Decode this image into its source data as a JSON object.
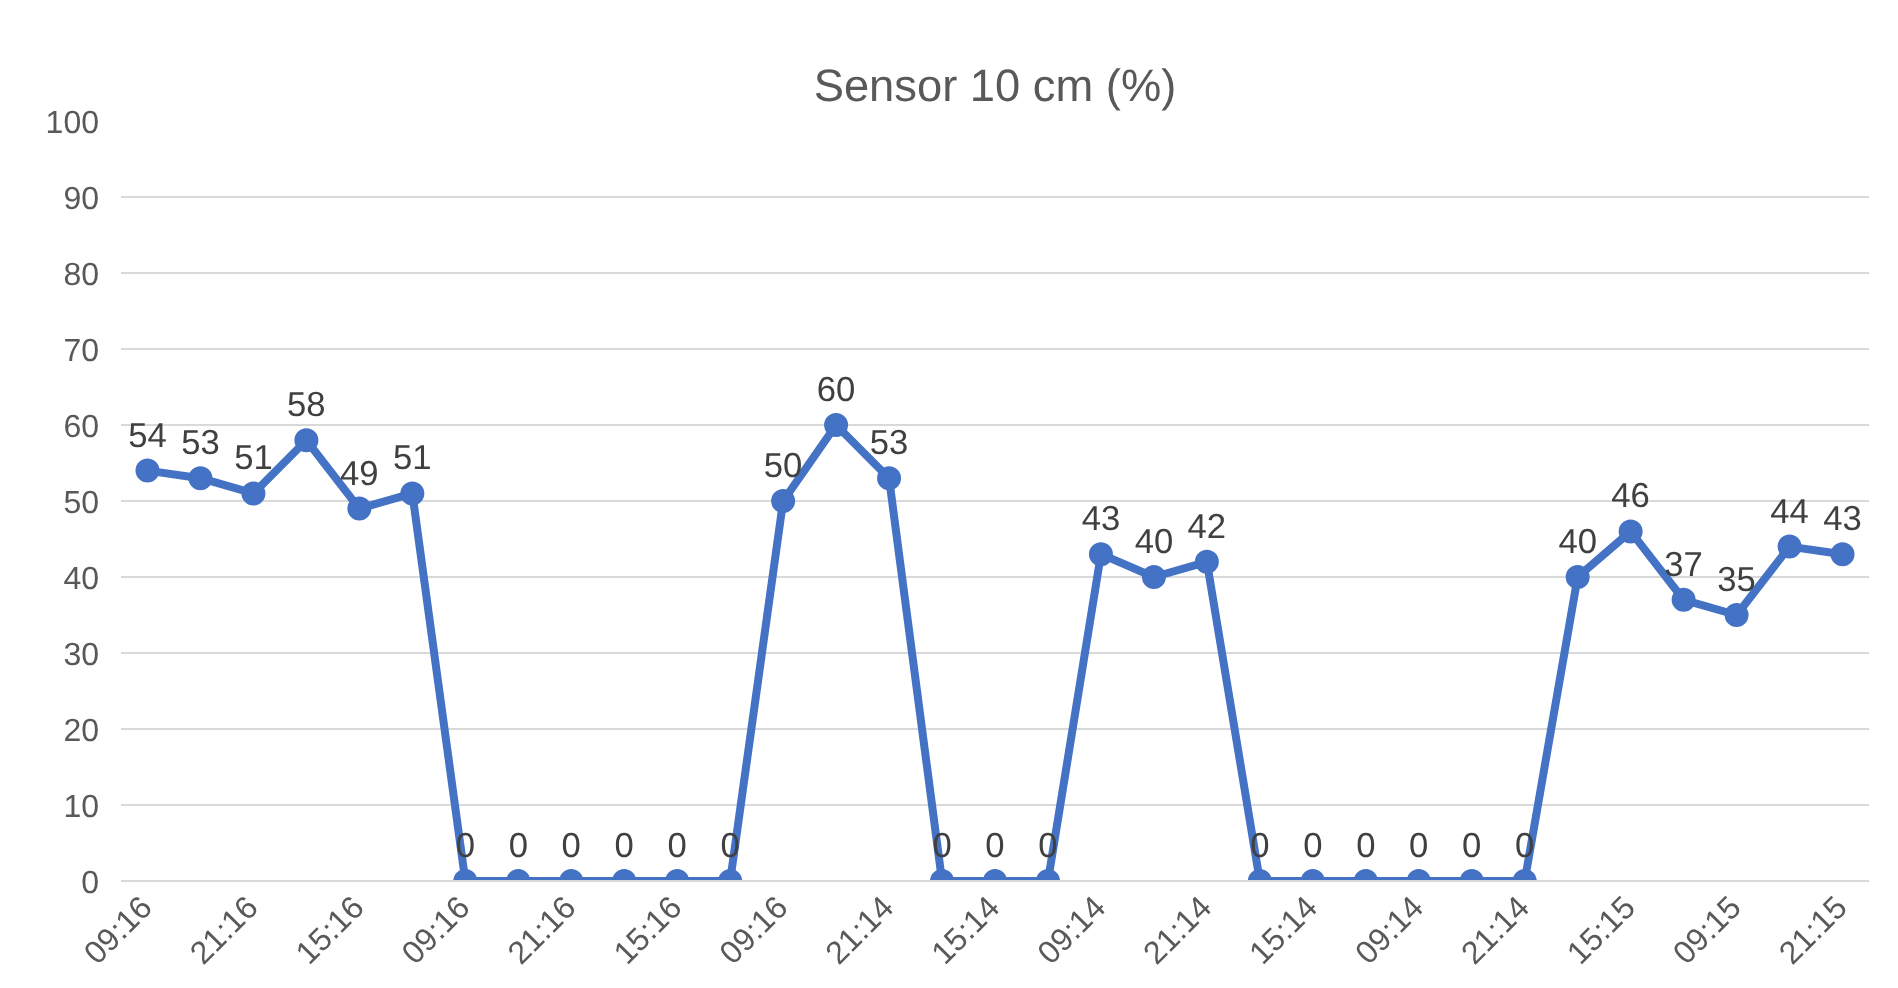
{
  "chart_data": {
    "type": "line",
    "title": "Sensor 10 cm (%)",
    "categories": [
      "09:16",
      null,
      "21:16",
      null,
      "15:16",
      null,
      "09:16",
      null,
      "21:16",
      null,
      "15:16",
      null,
      "09:16",
      null,
      "21:14",
      null,
      "15:14",
      null,
      "09:14",
      null,
      "21:14",
      null,
      "15:14",
      null,
      "09:14",
      null,
      "21:14",
      null,
      "15:15",
      null,
      "09:15",
      null,
      "21:15"
    ],
    "series": [
      {
        "color": "#4472c4",
        "values": [
          54,
          53,
          51,
          58,
          49,
          51,
          0,
          0,
          0,
          0,
          0,
          0,
          50,
          60,
          53,
          0,
          0,
          0,
          43,
          40,
          42,
          0,
          0,
          0,
          0,
          0,
          0,
          40,
          46,
          37,
          35,
          44,
          43
        ]
      }
    ],
    "ylim": [
      0,
      100
    ],
    "yticks": [
      0,
      10,
      20,
      30,
      40,
      50,
      60,
      70,
      80,
      90,
      100
    ],
    "grid": "y",
    "marker": "circle",
    "line_style": "solid",
    "data_labels": true
  }
}
